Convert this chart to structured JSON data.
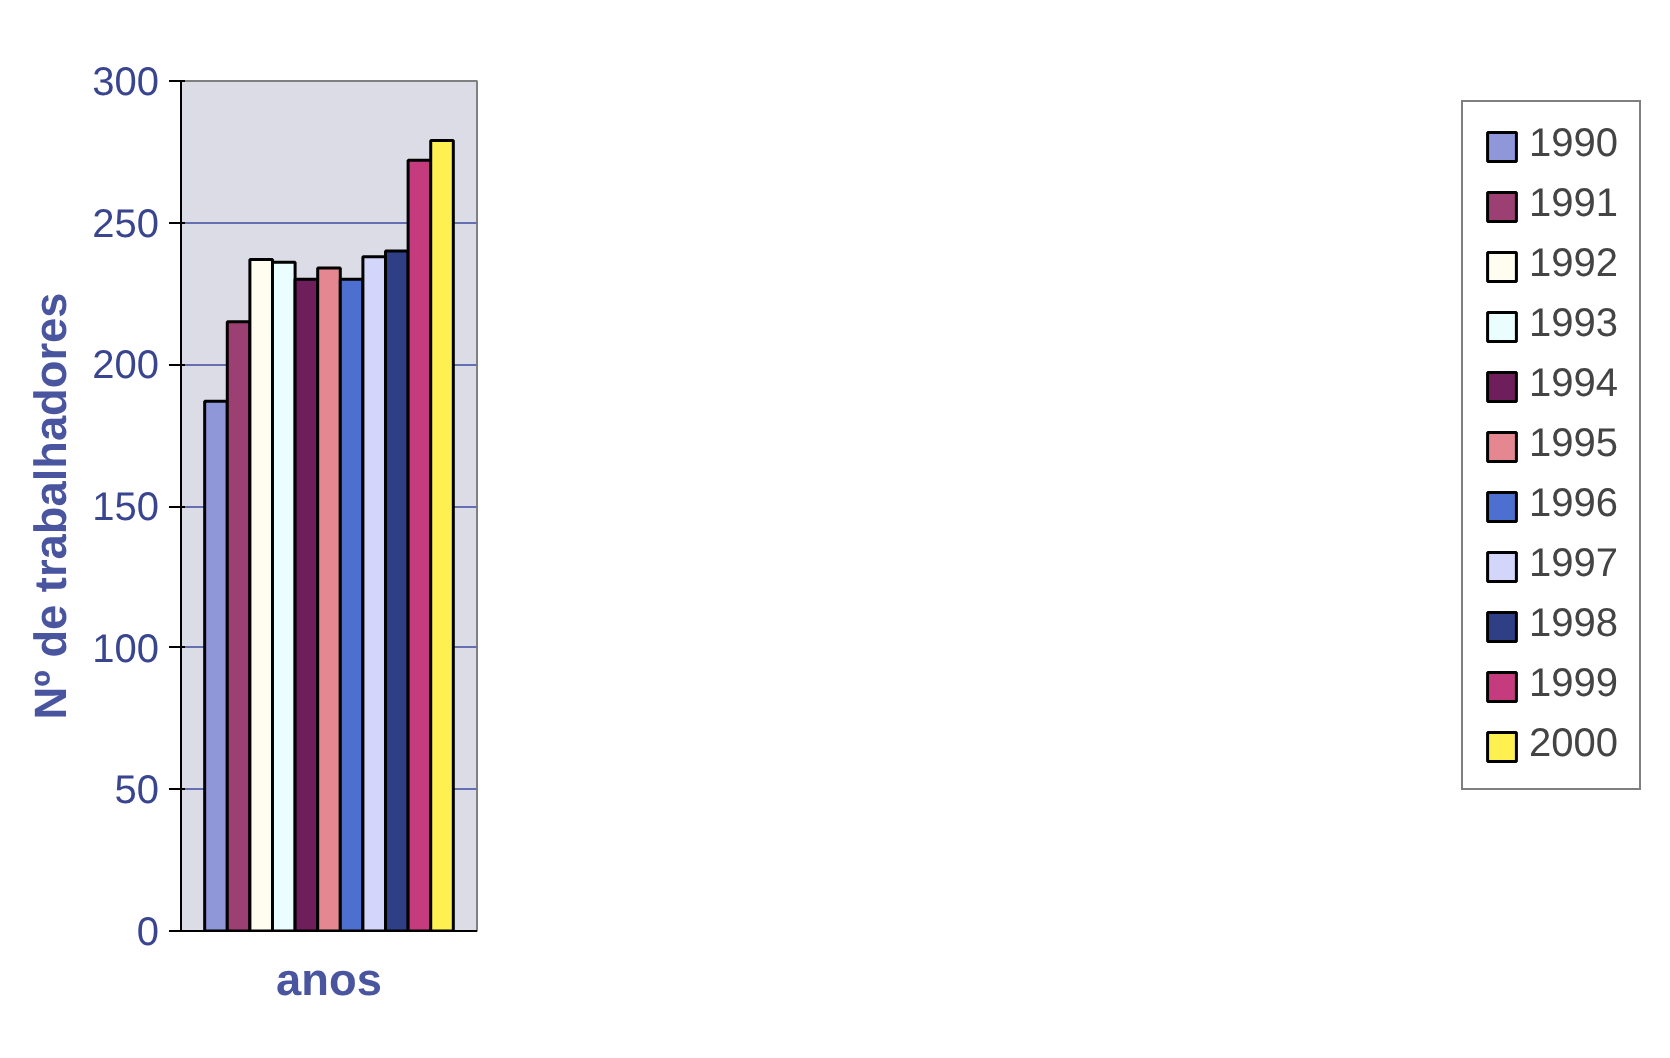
{
  "chart_data": {
    "type": "bar",
    "categories": [
      null
    ],
    "xlabel": "anos",
    "ylabel": "Nº de trabalhadores",
    "ylim": [
      0,
      300
    ],
    "yticks": [
      0,
      50,
      100,
      150,
      200,
      250,
      300
    ],
    "grid": "y",
    "legend": "right",
    "series": [
      {
        "name": "1990",
        "color": "#8f97d9",
        "values": [
          187
        ]
      },
      {
        "name": "1991",
        "color": "#9c3f72",
        "values": [
          215
        ]
      },
      {
        "name": "1992",
        "color": "#fffdf0",
        "values": [
          237
        ]
      },
      {
        "name": "1993",
        "color": "#eafeff",
        "values": [
          236
        ]
      },
      {
        "name": "1994",
        "color": "#6e1f5b",
        "values": [
          230
        ]
      },
      {
        "name": "1995",
        "color": "#e48790",
        "values": [
          234
        ]
      },
      {
        "name": "1996",
        "color": "#4d6fcf",
        "values": [
          230
        ]
      },
      {
        "name": "1997",
        "color": "#d3d5fa",
        "values": [
          238
        ]
      },
      {
        "name": "1998",
        "color": "#2e3f85",
        "values": [
          240
        ]
      },
      {
        "name": "1999",
        "color": "#c53c7e",
        "values": [
          272
        ]
      },
      {
        "name": "2000",
        "color": "#fef051",
        "values": [
          279
        ]
      }
    ]
  }
}
